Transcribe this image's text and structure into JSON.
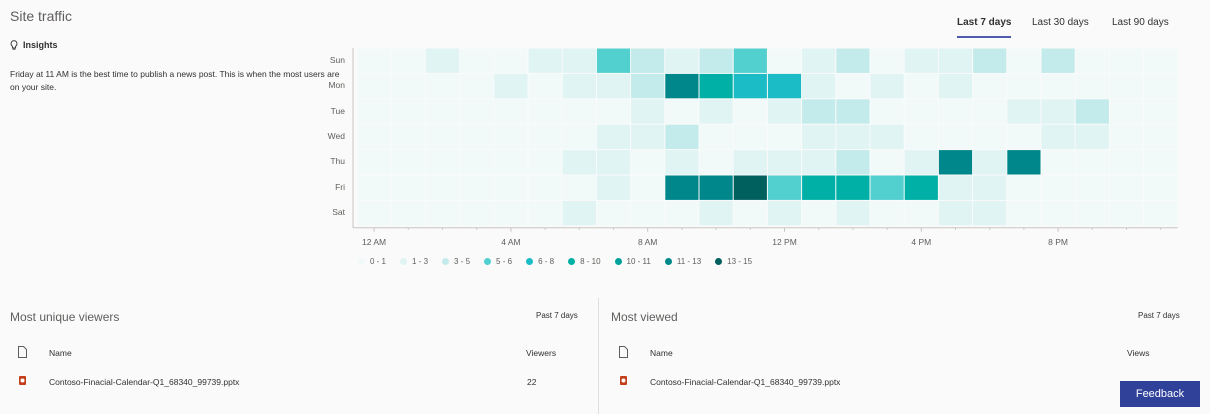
{
  "header": {
    "title": "Site traffic"
  },
  "insights": {
    "label": "Insights",
    "icon": "lightbulb-icon",
    "text": "Friday at 11 AM is the best time to publish a news post. This is when the most users are on your site."
  },
  "tabs": [
    {
      "label": "Last 7 days",
      "active": true
    },
    {
      "label": "Last 30 days",
      "active": false
    },
    {
      "label": "Last 90 days",
      "active": false
    }
  ],
  "chart_data": {
    "type": "heatmap",
    "rows": [
      "Sun",
      "Mon",
      "Tue",
      "Wed",
      "Thu",
      "Fri",
      "Sat"
    ],
    "columns": [
      "12 AM",
      "1 AM",
      "2 AM",
      "3 AM",
      "4 AM",
      "5 AM",
      "6 AM",
      "7 AM",
      "8 AM",
      "9 AM",
      "10 AM",
      "11 AM",
      "12 PM",
      "1 PM",
      "2 PM",
      "3 PM",
      "4 PM",
      "5 PM",
      "6 PM",
      "7 PM",
      "8 PM",
      "9 PM",
      "10 PM",
      "11 PM"
    ],
    "x_tick_labels": [
      "12 AM",
      "4 AM",
      "8 AM",
      "12 PM",
      "4 PM",
      "8 PM"
    ],
    "values": [
      [
        0.5,
        0.5,
        2,
        0.5,
        0.5,
        2,
        2,
        5.5,
        4,
        2,
        4,
        5.5,
        0.5,
        2,
        4,
        0.5,
        2,
        2,
        4,
        0.5,
        4,
        0.5,
        0.5,
        0.5
      ],
      [
        0.5,
        0.5,
        0.5,
        0.5,
        2,
        0.5,
        2,
        2,
        4,
        12,
        9,
        7,
        7,
        2,
        0.5,
        2,
        0.5,
        2,
        0.5,
        0.5,
        0.5,
        0.5,
        0.5,
        0.5
      ],
      [
        0.5,
        0.5,
        0.5,
        0.5,
        0.5,
        0.5,
        0.5,
        0.5,
        2,
        0.5,
        2,
        0.5,
        2,
        4,
        4,
        0.5,
        0.5,
        0.5,
        0.5,
        2,
        2,
        4,
        0.5,
        0.5
      ],
      [
        0.5,
        0.5,
        0.5,
        0.5,
        0.5,
        0.5,
        0.5,
        2,
        2,
        4,
        0.5,
        0.5,
        0.5,
        2,
        2,
        2,
        0.5,
        0.5,
        0.5,
        0.5,
        2,
        2,
        0.5,
        0.5
      ],
      [
        0.5,
        0.5,
        0.5,
        0.5,
        0.5,
        0.5,
        2,
        2,
        0.5,
        2,
        0.5,
        2,
        2,
        2,
        4,
        0.5,
        2,
        12,
        2,
        12,
        0.5,
        0.5,
        0.5,
        0.5
      ],
      [
        0.5,
        0.5,
        0.5,
        0.5,
        0.5,
        0.5,
        0.5,
        2,
        0.5,
        12,
        12,
        14,
        5.5,
        9,
        9,
        5.5,
        9,
        2,
        2,
        0.5,
        0.5,
        0.5,
        0.5,
        0.5
      ],
      [
        0.5,
        0.5,
        0.5,
        0.5,
        0.5,
        0.5,
        2,
        0.5,
        0.5,
        0.5,
        2,
        0.5,
        2,
        0.5,
        2,
        0.5,
        0.5,
        2,
        2,
        0.5,
        0.5,
        0.5,
        0.5,
        0.5
      ]
    ],
    "legend": [
      {
        "label": "0 - 1",
        "min": 0,
        "max": 1,
        "color": "#f1f9f9"
      },
      {
        "label": "1 - 3",
        "min": 1,
        "max": 3,
        "color": "#e0f4f4"
      },
      {
        "label": "3 - 5",
        "min": 3,
        "max": 5,
        "color": "#c3ebeb"
      },
      {
        "label": "5 - 6",
        "min": 5,
        "max": 6,
        "color": "#52cfcf"
      },
      {
        "label": "6 - 8",
        "min": 6,
        "max": 8,
        "color": "#1bbcc6"
      },
      {
        "label": "8 - 10",
        "min": 8,
        "max": 10,
        "color": "#00b0a6"
      },
      {
        "label": "10 - 11",
        "min": 10,
        "max": 11,
        "color": "#00a09c"
      },
      {
        "label": "11 - 13",
        "min": 11,
        "max": 13,
        "color": "#00878b"
      },
      {
        "label": "13 - 15",
        "min": 13,
        "max": 15,
        "color": "#00605e"
      }
    ],
    "legend_placement": "bottom-left"
  },
  "unique_viewers": {
    "title": "Most unique viewers",
    "range": "Past 7 days",
    "col_name": "Name",
    "col_value": "Viewers",
    "rows": [
      {
        "name": "Contoso-Finacial-Calendar-Q1_68340_99739.pptx",
        "value": "22",
        "icon": "powerpoint-file-icon"
      }
    ]
  },
  "most_viewed": {
    "title": "Most viewed",
    "range": "Past 7 days",
    "col_name": "Name",
    "col_value": "Views",
    "rows": [
      {
        "name": "Contoso-Finacial-Calendar-Q1_68340_99739.pptx",
        "icon": "powerpoint-file-icon"
      }
    ]
  },
  "feedback": {
    "label": "Feedback",
    "color": "#2f4199"
  },
  "accent": "#4f5bab"
}
